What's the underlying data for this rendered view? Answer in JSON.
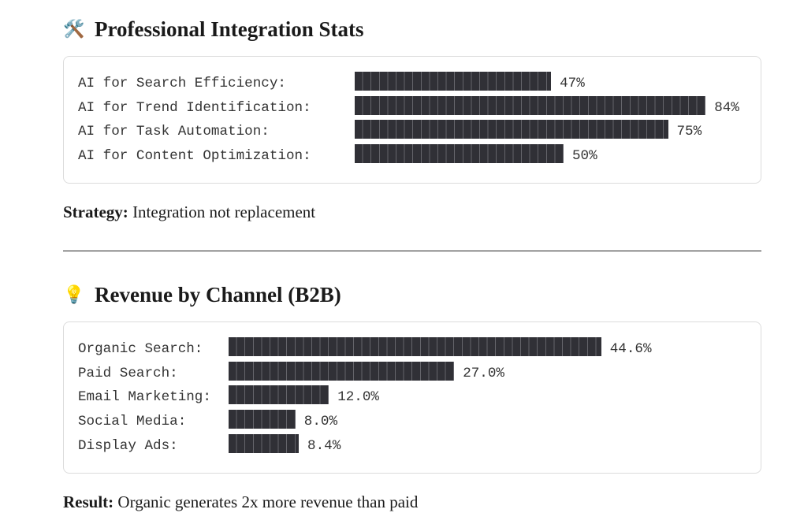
{
  "sections": [
    {
      "icon": "🛠️",
      "title": "Professional Integration Stats",
      "stats": {
        "categories": [
          "AI for Search Efficiency:",
          "AI for Trend Identification:",
          "AI for Task Automation:",
          "AI for Content Optimization:"
        ],
        "values": [
          47,
          84,
          75,
          50
        ],
        "value_labels": [
          "47%",
          "84%",
          "75%",
          "50%"
        ]
      },
      "note": {
        "label": "Strategy:",
        "text": "Integration not replacement"
      }
    },
    {
      "icon": "💡",
      "title": "Revenue by Channel (B2B)",
      "stats": {
        "categories": [
          "Organic Search:",
          "Paid Search:",
          "Email Marketing:",
          "Social Media:",
          "Display Ads:"
        ],
        "values": [
          44.6,
          27.0,
          12.0,
          8.0,
          8.4
        ],
        "value_labels": [
          "44.6%",
          "27.0%",
          "12.0%",
          "8.0%",
          "8.4%"
        ]
      },
      "note": {
        "label": "Result:",
        "text": "Organic generates 2x more revenue than paid"
      }
    }
  ]
}
